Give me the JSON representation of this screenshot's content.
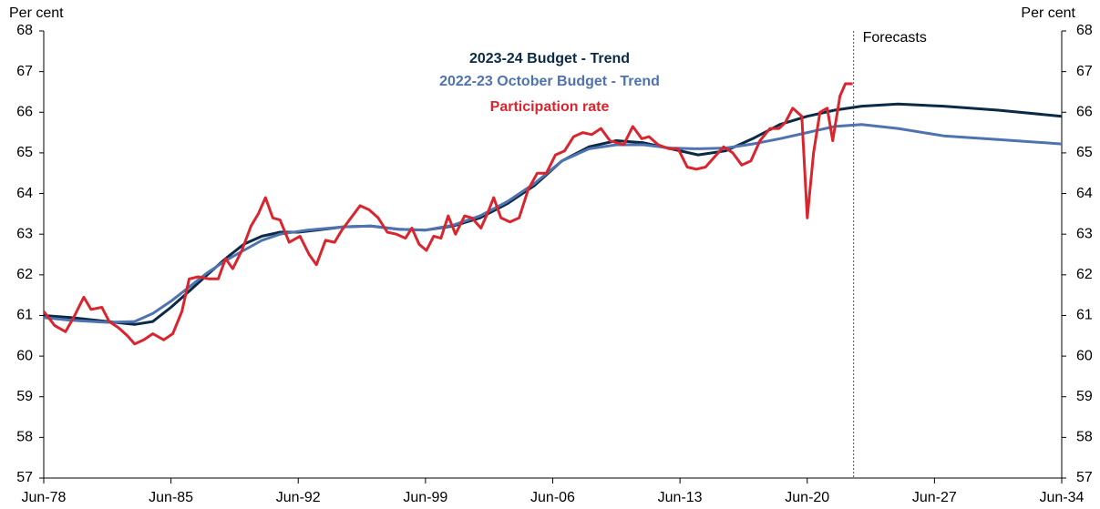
{
  "chart_data": {
    "type": "line",
    "y_label": "Per cent",
    "y2_label": "Per cent",
    "xlim": [
      1978.5,
      2034.5
    ],
    "xticks": [
      {
        "value": 1978.5,
        "label": "Jun-78"
      },
      {
        "value": 1985.5,
        "label": "Jun-85"
      },
      {
        "value": 1992.5,
        "label": "Jun-92"
      },
      {
        "value": 1999.5,
        "label": "Jun-99"
      },
      {
        "value": 2006.5,
        "label": "Jun-06"
      },
      {
        "value": 2013.5,
        "label": "Jun-13"
      },
      {
        "value": 2020.5,
        "label": "Jun-20"
      },
      {
        "value": 2027.5,
        "label": "Jun-27"
      },
      {
        "value": 2034.5,
        "label": "Jun-34"
      }
    ],
    "ylim": [
      57,
      68
    ],
    "yticks": [
      57,
      58,
      59,
      60,
      61,
      62,
      63,
      64,
      65,
      66,
      67,
      68
    ],
    "y2lim": [
      57,
      68
    ],
    "y2ticks": [
      57,
      58,
      59,
      60,
      61,
      62,
      63,
      64,
      65,
      66,
      67,
      68
    ],
    "annotation": {
      "text": "Forecasts",
      "x": 2023.05
    },
    "series": [
      {
        "name": "2023-24 Budget - Trend",
        "color": "#0b2a45",
        "x": [
          1978.5,
          1980,
          1982,
          1983.5,
          1984.5,
          1985.5,
          1986.5,
          1987.5,
          1988.5,
          1989.5,
          1990.5,
          1991.5,
          1992.5,
          1993.5,
          1995,
          1996.5,
          1998,
          1999.5,
          2001,
          2002.5,
          2004,
          2005.5,
          2007,
          2008.5,
          2010,
          2011.5,
          2013,
          2014.5,
          2016,
          2017.5,
          2019,
          2020.5,
          2022,
          2023.5,
          2025.5,
          2028,
          2031,
          2034.5
        ],
        "values": [
          61.0,
          60.95,
          60.85,
          60.78,
          60.85,
          61.2,
          61.6,
          62.0,
          62.4,
          62.75,
          62.95,
          63.05,
          63.05,
          63.1,
          63.18,
          63.2,
          63.12,
          63.1,
          63.2,
          63.4,
          63.75,
          64.2,
          64.8,
          65.15,
          65.3,
          65.25,
          65.1,
          64.95,
          65.05,
          65.35,
          65.7,
          65.9,
          66.05,
          66.15,
          66.2,
          66.15,
          66.05,
          65.9
        ]
      },
      {
        "name": "2022-23 October Budget - Trend",
        "color": "#4f72b0",
        "x": [
          1978.5,
          1980,
          1982,
          1983.5,
          1984.5,
          1985.5,
          1986.5,
          1987.5,
          1988.5,
          1989.5,
          1990.5,
          1991.5,
          1993,
          1995,
          1996.5,
          1998,
          1999.5,
          2001,
          2002.5,
          2004,
          2005.5,
          2007,
          2008.5,
          2010,
          2011.5,
          2013,
          2014.5,
          2016,
          2017.5,
          2019,
          2020.5,
          2022,
          2023.5,
          2025.5,
          2028,
          2031,
          2034.5
        ],
        "values": [
          60.95,
          60.88,
          60.83,
          60.85,
          61.05,
          61.35,
          61.7,
          62.05,
          62.35,
          62.6,
          62.85,
          63.0,
          63.1,
          63.18,
          63.2,
          63.12,
          63.1,
          63.22,
          63.45,
          63.8,
          64.25,
          64.8,
          65.1,
          65.2,
          65.2,
          65.12,
          65.1,
          65.12,
          65.22,
          65.35,
          65.5,
          65.65,
          65.7,
          65.6,
          65.42,
          65.33,
          65.22
        ]
      },
      {
        "name": "Participation rate",
        "color": "#d9262e",
        "x": [
          1978.5,
          1979.1,
          1979.7,
          1980.2,
          1980.7,
          1981.1,
          1981.7,
          1982.1,
          1982.6,
          1983.1,
          1983.5,
          1984.0,
          1984.5,
          1985.1,
          1985.6,
          1986.1,
          1986.5,
          1987.0,
          1987.6,
          1988.1,
          1988.5,
          1988.9,
          1989.4,
          1989.9,
          1990.3,
          1990.7,
          1991.1,
          1991.5,
          1992.0,
          1992.6,
          1993.1,
          1993.5,
          1994.0,
          1994.5,
          1994.9,
          1995.4,
          1995.9,
          1996.4,
          1996.9,
          1997.4,
          1997.9,
          1998.4,
          1998.75,
          1999.15,
          1999.55,
          1999.95,
          2000.35,
          2000.75,
          2001.15,
          2001.65,
          2002.05,
          2002.55,
          2002.9,
          2003.25,
          2003.65,
          2004.15,
          2004.65,
          2005.15,
          2005.65,
          2006.15,
          2006.65,
          2007.15,
          2007.65,
          2008.15,
          2008.65,
          2009.15,
          2009.65,
          2010.4,
          2010.9,
          2011.4,
          2011.8,
          2012.3,
          2012.9,
          2013.4,
          2013.9,
          2014.4,
          2014.9,
          2015.4,
          2015.9,
          2016.4,
          2016.9,
          2017.4,
          2017.9,
          2018.45,
          2018.95,
          2019.3,
          2019.7,
          2020.2,
          2020.5,
          2020.85,
          2021.2,
          2021.6,
          2021.9,
          2022.3,
          2022.6,
          2023.0
        ],
        "values": [
          61.1,
          60.75,
          60.6,
          61.0,
          61.45,
          61.15,
          61.2,
          60.85,
          60.7,
          60.5,
          60.3,
          60.4,
          60.55,
          60.4,
          60.55,
          61.1,
          61.9,
          61.95,
          61.9,
          61.9,
          62.4,
          62.15,
          62.6,
          63.2,
          63.5,
          63.9,
          63.4,
          63.35,
          62.8,
          62.95,
          62.5,
          62.25,
          62.85,
          62.8,
          63.1,
          63.4,
          63.7,
          63.6,
          63.4,
          63.05,
          63.0,
          62.9,
          63.15,
          62.75,
          62.6,
          62.95,
          62.9,
          63.45,
          63.0,
          63.45,
          63.4,
          63.15,
          63.5,
          63.9,
          63.4,
          63.3,
          63.4,
          64.1,
          64.5,
          64.5,
          64.95,
          65.05,
          65.4,
          65.5,
          65.45,
          65.6,
          65.3,
          65.2,
          65.65,
          65.35,
          65.4,
          65.2,
          65.1,
          65.1,
          64.65,
          64.6,
          64.65,
          64.9,
          65.15,
          65.0,
          64.7,
          64.8,
          65.3,
          65.6,
          65.6,
          65.75,
          66.1,
          65.9,
          63.4,
          65.0,
          66.0,
          66.1,
          65.3,
          66.4,
          66.7,
          66.7
        ]
      }
    ]
  }
}
